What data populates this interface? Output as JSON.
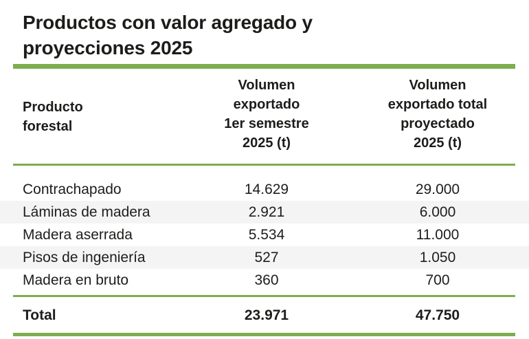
{
  "title": {
    "line1": "Productos con valor agregado y",
    "line2": "proyecciones 2025"
  },
  "colors": {
    "accent_green": "#7dad4f",
    "row_alt_bg": "#f4f4f4",
    "text": "#1d1d1b"
  },
  "table": {
    "columns": [
      {
        "label": "Producto\nforestal"
      },
      {
        "label": "Volumen\nexportado\n1er semestre\n2025 (t)"
      },
      {
        "label": "Volumen\nexportado total\nproyectado\n2025 (t)"
      }
    ],
    "rows": [
      {
        "product": "Contrachapado",
        "semester": "14.629",
        "projected": "29.000"
      },
      {
        "product": "Láminas de madera",
        "semester": "2.921",
        "projected": "6.000"
      },
      {
        "product": "Madera aserrada",
        "semester": "5.534",
        "projected": "11.000"
      },
      {
        "product": "Pisos de ingeniería",
        "semester": "527",
        "projected": "1.050"
      },
      {
        "product": "Madera en bruto",
        "semester": "360",
        "projected": "700"
      }
    ],
    "total": {
      "label": "Total",
      "semester": "23.971",
      "projected": "47.750"
    }
  },
  "chart_data": {
    "type": "table",
    "title": "Productos con valor agregado y proyecciones 2025",
    "columns": [
      "Producto forestal",
      "Volumen exportado 1er semestre 2025 (t)",
      "Volumen exportado total proyectado 2025 (t)"
    ],
    "rows": [
      [
        "Contrachapado",
        14629,
        29000
      ],
      [
        "Láminas de madera",
        2921,
        6000
      ],
      [
        "Madera aserrada",
        5534,
        11000
      ],
      [
        "Pisos de ingeniería",
        527,
        1050
      ],
      [
        "Madera en bruto",
        360,
        700
      ]
    ],
    "total_row": [
      "Total",
      23971,
      47750
    ],
    "notes": "Infographic table, green rules, zebra striping on alternate rows"
  }
}
